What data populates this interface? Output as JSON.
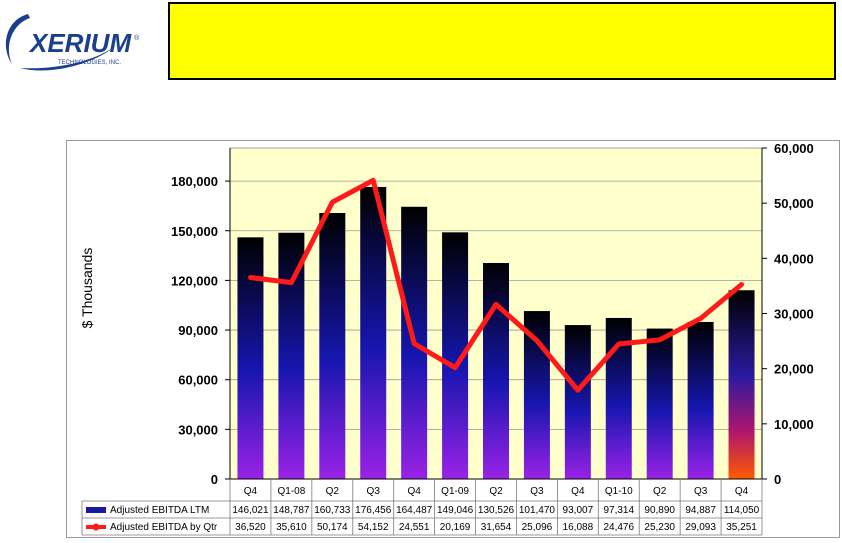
{
  "logo": {
    "name": "XERIUM",
    "tagline": "TECHNOLOGIES, INC.",
    "registered": "®"
  },
  "banner": {
    "text": ""
  },
  "chart_data": {
    "type": "bar",
    "categories": [
      "Q4",
      "Q1-08",
      "Q2",
      "Q3",
      "Q4",
      "Q1-09",
      "Q2",
      "Q3",
      "Q4",
      "Q1-10",
      "Q2",
      "Q3",
      "Q4"
    ],
    "series": [
      {
        "name": "Adjusted EBITDA LTM",
        "type": "bar",
        "axis": "left",
        "values": [
          146021,
          148787,
          160733,
          176456,
          164487,
          149046,
          130526,
          101470,
          93007,
          97314,
          90890,
          94887,
          114050
        ],
        "labels": [
          "146,021",
          "148,787",
          "160,733",
          "176,456",
          "164,487",
          "149,046",
          "130,526",
          "101,470",
          "93,007",
          "97,314",
          "90,890",
          "94,887",
          "114,050"
        ],
        "color": "#1a1aa0"
      },
      {
        "name": "Adjusted EBITDA by Qtr",
        "type": "line",
        "axis": "right",
        "values": [
          36520,
          35610,
          50174,
          54152,
          24551,
          20169,
          31654,
          25096,
          16088,
          24476,
          25230,
          29093,
          35251
        ],
        "labels": [
          "36,520",
          "35,610",
          "50,174",
          "54,152",
          "24,551",
          "20,169",
          "31,654",
          "25,096",
          "16,088",
          "24,476",
          "25,230",
          "29,093",
          "35,251"
        ],
        "color": "#ff1a1a"
      }
    ],
    "ylabel": "$ Thousands",
    "ylim": [
      0,
      200000
    ],
    "y2lim": [
      0,
      60000
    ],
    "yticks": [
      "0",
      "30,000",
      "60,000",
      "90,000",
      "120,000",
      "150,000",
      "180,000"
    ],
    "yticks_values": [
      0,
      30000,
      60000,
      90000,
      120000,
      150000,
      180000
    ],
    "y2ticks": [
      "0",
      "10,000",
      "20,000",
      "30,000",
      "40,000",
      "50,000",
      "60,000"
    ],
    "y2ticks_values": [
      0,
      10000,
      20000,
      30000,
      40000,
      50000,
      60000
    ],
    "plot_background": "#ffffcc",
    "legend": "data table below chart"
  }
}
